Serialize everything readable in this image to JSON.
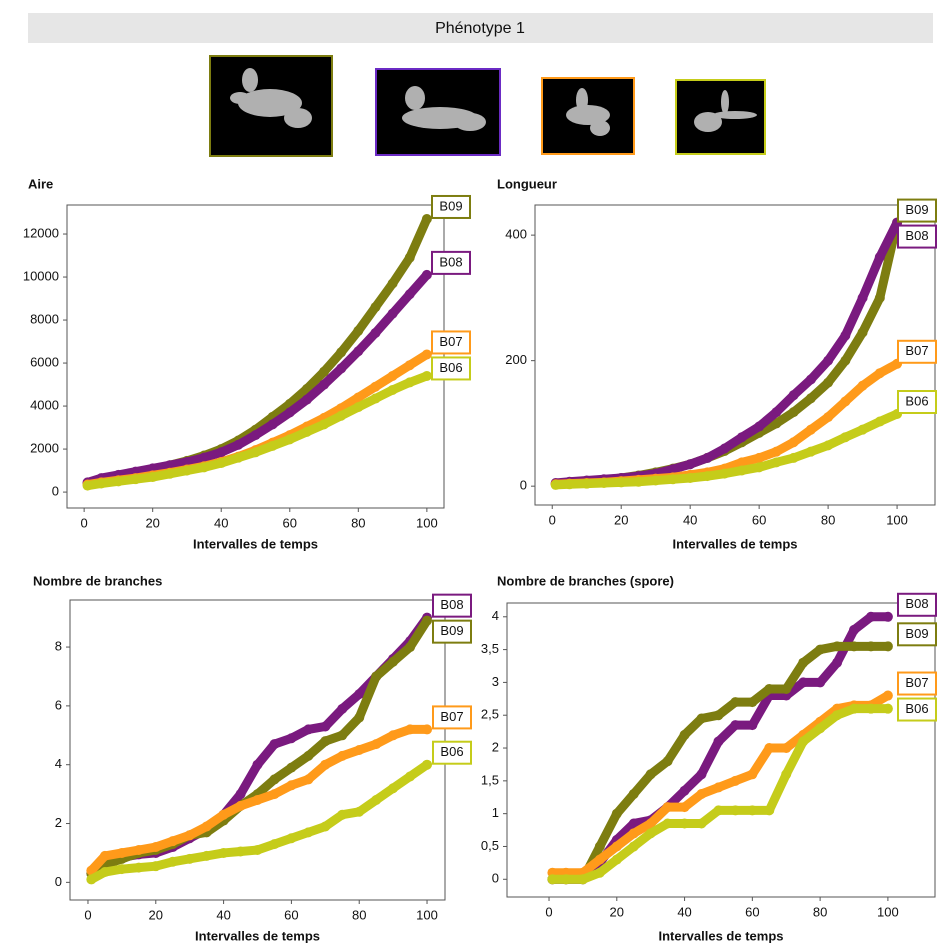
{
  "header": {
    "title": "Phénotype 1"
  },
  "chart_data": [
    {
      "type": "scatter",
      "title": "Aire",
      "xlabel": "Intervalles de temps",
      "x": [
        1,
        5,
        10,
        15,
        20,
        25,
        30,
        35,
        40,
        45,
        50,
        55,
        60,
        65,
        70,
        75,
        80,
        85,
        90,
        95,
        100
      ],
      "xlim": [
        -5,
        105
      ],
      "xticks": [
        0,
        20,
        40,
        60,
        80,
        100
      ],
      "ylim": [
        -740,
        13350
      ],
      "yticks": [
        0,
        2000,
        4000,
        6000,
        8000,
        10000,
        12000
      ],
      "series": [
        {
          "name": "B09",
          "color": "#7d7d10",
          "values": [
            400,
            500,
            700,
            900,
            1050,
            1250,
            1450,
            1700,
            2000,
            2400,
            2900,
            3500,
            4100,
            4800,
            5600,
            6500,
            7500,
            8600,
            9700,
            10900,
            12700
          ]
        },
        {
          "name": "B08",
          "color": "#7a1a7f",
          "values": [
            450,
            650,
            800,
            950,
            1100,
            1250,
            1400,
            1600,
            1850,
            2200,
            2650,
            3150,
            3700,
            4300,
            5000,
            5750,
            6550,
            7400,
            8300,
            9200,
            10100
          ]
        },
        {
          "name": "B07",
          "color": "#ff9a1a",
          "values": [
            350,
            450,
            550,
            650,
            780,
            900,
            1050,
            1200,
            1400,
            1650,
            1950,
            2300,
            2650,
            3050,
            3450,
            3900,
            4400,
            4900,
            5400,
            5900,
            6400
          ]
        },
        {
          "name": "B06",
          "color": "#c5cc1a",
          "values": [
            300,
            400,
            500,
            600,
            700,
            850,
            1000,
            1150,
            1350,
            1600,
            1850,
            2150,
            2450,
            2800,
            3150,
            3550,
            3950,
            4350,
            4750,
            5100,
            5400
          ]
        }
      ]
    },
    {
      "type": "scatter",
      "title": "Longueur",
      "xlabel": "Intervalles de temps",
      "x": [
        1,
        5,
        10,
        15,
        20,
        25,
        30,
        35,
        40,
        45,
        50,
        55,
        60,
        65,
        70,
        75,
        80,
        85,
        90,
        95,
        100
      ],
      "xlim": [
        -5,
        111
      ],
      "xticks": [
        0,
        20,
        40,
        60,
        80,
        100
      ],
      "ylim": [
        -30,
        448
      ],
      "yticks": [
        0,
        200,
        400
      ],
      "series": [
        {
          "name": "B09",
          "color": "#7d7d10",
          "values": [
            3,
            5,
            7,
            10,
            13,
            17,
            22,
            28,
            35,
            45,
            56,
            70,
            85,
            100,
            118,
            140,
            165,
            200,
            245,
            300,
            420
          ]
        },
        {
          "name": "B08",
          "color": "#7a1a7f",
          "values": [
            5,
            7,
            9,
            11,
            13,
            16,
            20,
            27,
            35,
            45,
            60,
            78,
            95,
            118,
            145,
            170,
            200,
            240,
            300,
            365,
            420
          ]
        },
        {
          "name": "B07",
          "color": "#ff9a1a",
          "values": [
            3,
            4,
            5,
            6,
            8,
            10,
            12,
            14,
            18,
            22,
            28,
            38,
            45,
            55,
            70,
            90,
            110,
            135,
            160,
            180,
            195
          ]
        },
        {
          "name": "B06",
          "color": "#c5cc1a",
          "values": [
            2,
            3,
            4,
            5,
            6,
            7,
            9,
            11,
            13,
            16,
            20,
            25,
            30,
            38,
            45,
            55,
            65,
            78,
            90,
            103,
            115
          ]
        }
      ]
    },
    {
      "type": "scatter",
      "title": "Nombre de branches",
      "xlabel": "Intervalles de temps",
      "x": [
        1,
        5,
        10,
        15,
        20,
        25,
        30,
        35,
        40,
        45,
        50,
        55,
        60,
        65,
        70,
        75,
        80,
        85,
        90,
        95,
        100
      ],
      "xlim": [
        -5.3,
        105.3
      ],
      "xticks": [
        0,
        20,
        40,
        60,
        80,
        100
      ],
      "ylim": [
        -0.6,
        9.6
      ],
      "yticks": [
        0,
        2,
        4,
        6,
        8
      ],
      "series": [
        {
          "name": "B08",
          "color": "#7a1a7f",
          "values": [
            0.3,
            0.8,
            0.85,
            0.95,
            1.0,
            1.2,
            1.5,
            1.8,
            2.3,
            3.0,
            4.0,
            4.7,
            4.9,
            5.2,
            5.3,
            5.9,
            6.4,
            7.0,
            7.6,
            8.2,
            9.0
          ]
        },
        {
          "name": "B09",
          "color": "#7d7d10",
          "values": [
            0.3,
            0.6,
            0.8,
            1.0,
            1.1,
            1.3,
            1.6,
            1.7,
            2.1,
            2.6,
            3.0,
            3.5,
            3.9,
            4.3,
            4.8,
            5.0,
            5.6,
            7.0,
            7.5,
            8.0,
            8.9
          ]
        },
        {
          "name": "B07",
          "color": "#ff9a1a",
          "values": [
            0.4,
            0.9,
            1.0,
            1.1,
            1.2,
            1.4,
            1.6,
            1.9,
            2.3,
            2.6,
            2.8,
            3.0,
            3.3,
            3.5,
            4.0,
            4.3,
            4.5,
            4.7,
            5.0,
            5.2,
            5.2
          ]
        },
        {
          "name": "B06",
          "color": "#c5cc1a",
          "values": [
            0.1,
            0.35,
            0.45,
            0.5,
            0.55,
            0.7,
            0.8,
            0.9,
            1.0,
            1.05,
            1.1,
            1.3,
            1.5,
            1.7,
            1.9,
            2.3,
            2.4,
            2.8,
            3.2,
            3.6,
            4.0
          ]
        }
      ]
    },
    {
      "type": "scatter",
      "title": "Nombre de branches (spore)",
      "xlabel": "Intervalles de temps",
      "x": [
        1,
        5,
        10,
        15,
        20,
        25,
        30,
        35,
        40,
        45,
        50,
        55,
        60,
        65,
        70,
        75,
        80,
        85,
        90,
        95,
        100
      ],
      "xlim": [
        -12.4,
        113.9
      ],
      "xticks": [
        0,
        20,
        40,
        60,
        80,
        100
      ],
      "ylim": [
        -0.27,
        4.21
      ],
      "yticks": [
        0,
        {
          "value": 0.5,
          "label": "0,5"
        },
        1,
        {
          "value": 1.5,
          "label": "1,5"
        },
        2,
        {
          "value": 2.5,
          "label": "2,5"
        },
        3,
        {
          "value": 3.5,
          "label": "3,5"
        },
        4
      ],
      "series": [
        {
          "name": "B08",
          "color": "#7a1a7f",
          "values": [
            0,
            0,
            0,
            0.25,
            0.6,
            0.85,
            0.9,
            1.1,
            1.35,
            1.6,
            2.1,
            2.35,
            2.35,
            2.8,
            2.8,
            3.0,
            3.0,
            3.3,
            3.8,
            4.0,
            4.0
          ]
        },
        {
          "name": "B09",
          "color": "#7d7d10",
          "values": [
            0,
            0,
            0,
            0.5,
            1.0,
            1.3,
            1.6,
            1.8,
            2.2,
            2.45,
            2.5,
            2.7,
            2.7,
            2.9,
            2.9,
            3.3,
            3.5,
            3.55,
            3.55,
            3.55,
            3.55
          ]
        },
        {
          "name": "B07",
          "color": "#ff9a1a",
          "values": [
            0.1,
            0.1,
            0.1,
            0.3,
            0.5,
            0.7,
            0.85,
            1.1,
            1.1,
            1.3,
            1.4,
            1.5,
            1.6,
            2.0,
            2.0,
            2.2,
            2.4,
            2.6,
            2.65,
            2.65,
            2.8
          ]
        },
        {
          "name": "B06",
          "color": "#c5cc1a",
          "values": [
            0,
            0,
            0,
            0.1,
            0.3,
            0.5,
            0.7,
            0.85,
            0.85,
            0.85,
            1.05,
            1.05,
            1.05,
            1.05,
            1.6,
            2.1,
            2.3,
            2.5,
            2.6,
            2.6,
            2.6
          ]
        }
      ]
    }
  ]
}
